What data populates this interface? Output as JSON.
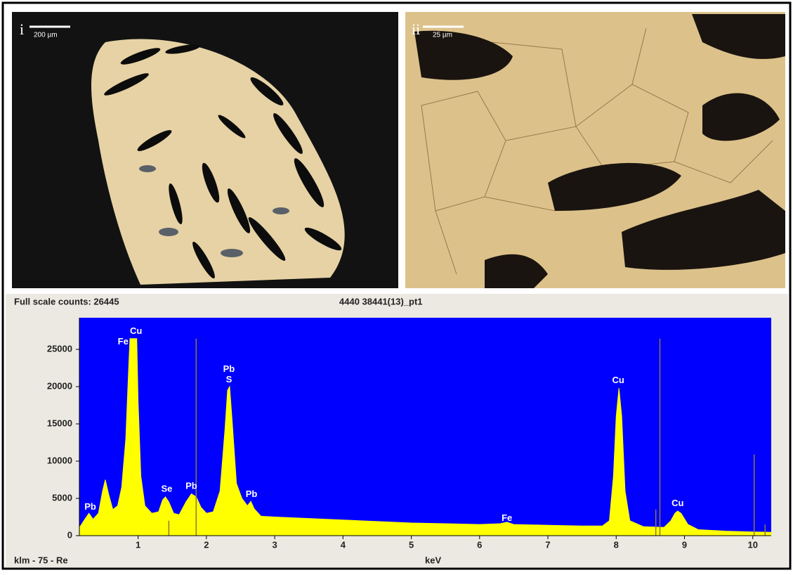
{
  "panels": [
    {
      "label": "i",
      "scale": "200 µm"
    },
    {
      "label": "ii",
      "scale": "25 µm"
    }
  ],
  "chart_data": {
    "type": "area",
    "header": "Full scale counts: 26445",
    "title": "4440 38441(13)_pt1",
    "x_label": "keV",
    "footer": "klm - 75 - Re",
    "color": "#ffff00",
    "background": "#0000ff",
    "x": [
      0.15,
      0.22,
      0.28,
      0.34,
      0.42,
      0.48,
      0.52,
      0.57,
      0.63,
      0.7,
      0.76,
      0.82,
      0.86,
      0.88,
      0.98,
      1.0,
      1.04,
      1.1,
      1.2,
      1.3,
      1.36,
      1.4,
      1.45,
      1.52,
      1.6,
      1.7,
      1.78,
      1.85,
      1.92,
      2.0,
      2.1,
      2.2,
      2.27,
      2.31,
      2.34,
      2.38,
      2.44,
      2.52,
      2.6,
      2.65,
      2.7,
      2.8,
      3.0,
      3.5,
      4.0,
      4.5,
      5.0,
      5.5,
      6.0,
      6.3,
      6.4,
      6.5,
      7.0,
      7.5,
      7.8,
      7.9,
      7.96,
      8.0,
      8.04,
      8.08,
      8.13,
      8.2,
      8.4,
      8.7,
      8.8,
      8.86,
      8.9,
      8.95,
      9.05,
      9.2,
      9.6,
      10.0,
      10.27
    ],
    "values": [
      1200,
      2200,
      3000,
      2200,
      3000,
      6000,
      7500,
      5500,
      3500,
      4000,
      6500,
      13000,
      22000,
      26445,
      26445,
      18000,
      8000,
      4000,
      3000,
      3200,
      4800,
      5200,
      4500,
      3000,
      2800,
      4500,
      5600,
      5200,
      3800,
      3000,
      3200,
      6000,
      14000,
      19500,
      20000,
      15000,
      7000,
      5000,
      4000,
      4600,
      3600,
      2600,
      2500,
      2300,
      2100,
      1900,
      1700,
      1600,
      1500,
      1600,
      1800,
      1500,
      1400,
      1300,
      1300,
      2000,
      8000,
      16000,
      19800,
      16000,
      6000,
      2000,
      1200,
      1100,
      2000,
      3000,
      3300,
      3000,
      1500,
      800,
      600,
      500,
      450
    ],
    "markers": {
      "color": "#8a7a3a",
      "x": [
        1.45,
        1.85,
        8.58,
        8.64,
        10.02,
        10.18
      ],
      "values": [
        2000,
        26445,
        3500,
        26445,
        10900,
        1500
      ]
    },
    "annotations": [
      {
        "text": "Pb",
        "x": 0.3,
        "y": 3800
      },
      {
        "text": "Fe",
        "x": 0.78,
        "y": 26000
      },
      {
        "text": "Cu",
        "x": 0.97,
        "y": 27400
      },
      {
        "text": "Se",
        "x": 1.42,
        "y": 6200
      },
      {
        "text": "Pb",
        "x": 1.78,
        "y": 6600
      },
      {
        "text": "Pb",
        "x": 2.33,
        "y": 22300
      },
      {
        "text": "S",
        "x": 2.33,
        "y": 20900
      },
      {
        "text": "Pb",
        "x": 2.66,
        "y": 5500
      },
      {
        "text": "Fe",
        "x": 6.4,
        "y": 2300
      },
      {
        "text": "Cu",
        "x": 8.03,
        "y": 20800
      },
      {
        "text": "Cu",
        "x": 8.9,
        "y": 4300
      }
    ],
    "xlim": [
      0.14,
      10.27
    ],
    "ylim": [
      0,
      29250
    ],
    "xticks": [
      1,
      2,
      3,
      4,
      5,
      6,
      7,
      8,
      9,
      10
    ],
    "yticks": [
      0,
      5000,
      10000,
      15000,
      20000,
      25000
    ]
  }
}
